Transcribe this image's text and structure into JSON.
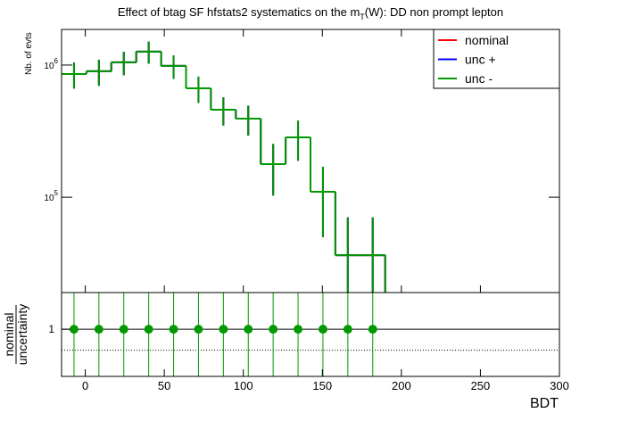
{
  "chart_data": [
    {
      "type": "histogram",
      "title": [
        "Effect of btag SF hfstats2 systematics on the m",
        "T",
        "(W): DD non prompt lepton"
      ],
      "y_label": "Nb. of evts",
      "bins": [
        -15,
        0.75,
        16.5,
        32.25,
        48,
        63.75,
        79.5,
        95.25,
        111,
        126.75,
        142.5,
        158.25,
        174,
        189.75,
        205.5,
        221.25,
        237,
        252.75,
        268.5,
        284.25,
        300
      ],
      "xlim": [
        -15,
        300
      ],
      "ylim": [
        19000,
        1860000
      ],
      "log_y": true,
      "yticks": [
        {
          "value": 100000,
          "label": "10",
          "exponent": "5"
        },
        {
          "value": 1000000,
          "label": "10",
          "exponent": "6"
        }
      ],
      "legend": "top-right",
      "series": [
        {
          "name": "nominal",
          "color": "#ff0000",
          "values": [
            855000,
            897000,
            1048000,
            1263000,
            985000,
            667000,
            459000,
            393000,
            178000,
            284000,
            110000,
            36400,
            36400,
            0,
            0,
            0,
            0,
            0,
            0,
            0
          ],
          "errors": [
            190000,
            200000,
            210000,
            240000,
            200000,
            150000,
            110000,
            100000,
            75000,
            95000,
            60000,
            34000,
            34000,
            0,
            0,
            0,
            0,
            0,
            0,
            0
          ]
        },
        {
          "name": "unc +",
          "color": "#0000ff",
          "values": [
            855000,
            897000,
            1048000,
            1263000,
            985000,
            667000,
            459000,
            393000,
            178000,
            284000,
            110000,
            36400,
            36400,
            0,
            0,
            0,
            0,
            0,
            0,
            0
          ],
          "errors": [
            190000,
            200000,
            210000,
            240000,
            200000,
            150000,
            110000,
            100000,
            75000,
            95000,
            60000,
            34000,
            34000,
            0,
            0,
            0,
            0,
            0,
            0,
            0
          ]
        },
        {
          "name": "unc -",
          "color": "#009900",
          "values": [
            855000,
            897000,
            1048000,
            1263000,
            985000,
            667000,
            459000,
            393000,
            178000,
            284000,
            110000,
            36400,
            36400,
            0,
            0,
            0,
            0,
            0,
            0,
            0
          ],
          "errors": [
            190000,
            200000,
            210000,
            240000,
            200000,
            150000,
            110000,
            100000,
            75000,
            95000,
            60000,
            34000,
            34000,
            0,
            0,
            0,
            0,
            0,
            0,
            0
          ]
        }
      ]
    },
    {
      "type": "ratio",
      "x_label": "BDT",
      "y_label": [
        "nominal",
        "uncertainty"
      ],
      "xlim": [
        -15,
        300
      ],
      "xticks": [
        0,
        50,
        100,
        150,
        200,
        250,
        300
      ],
      "ylim": [
        0.55,
        1.35
      ],
      "yticks": [
        1
      ],
      "reference_lines": [
        1,
        0.8
      ],
      "color": "#009900",
      "x": [
        -7.125,
        8.625,
        24.375,
        40.125,
        55.875,
        71.625,
        87.375,
        103.125,
        118.875,
        134.625,
        150.375,
        166.125,
        181.875
      ],
      "values": [
        1,
        1,
        1,
        1,
        1,
        1,
        1,
        1,
        1,
        1,
        1,
        1,
        1
      ],
      "errors": [
        1,
        1,
        1,
        1,
        1,
        1,
        1,
        1,
        1,
        1,
        1,
        1,
        1
      ]
    }
  ]
}
